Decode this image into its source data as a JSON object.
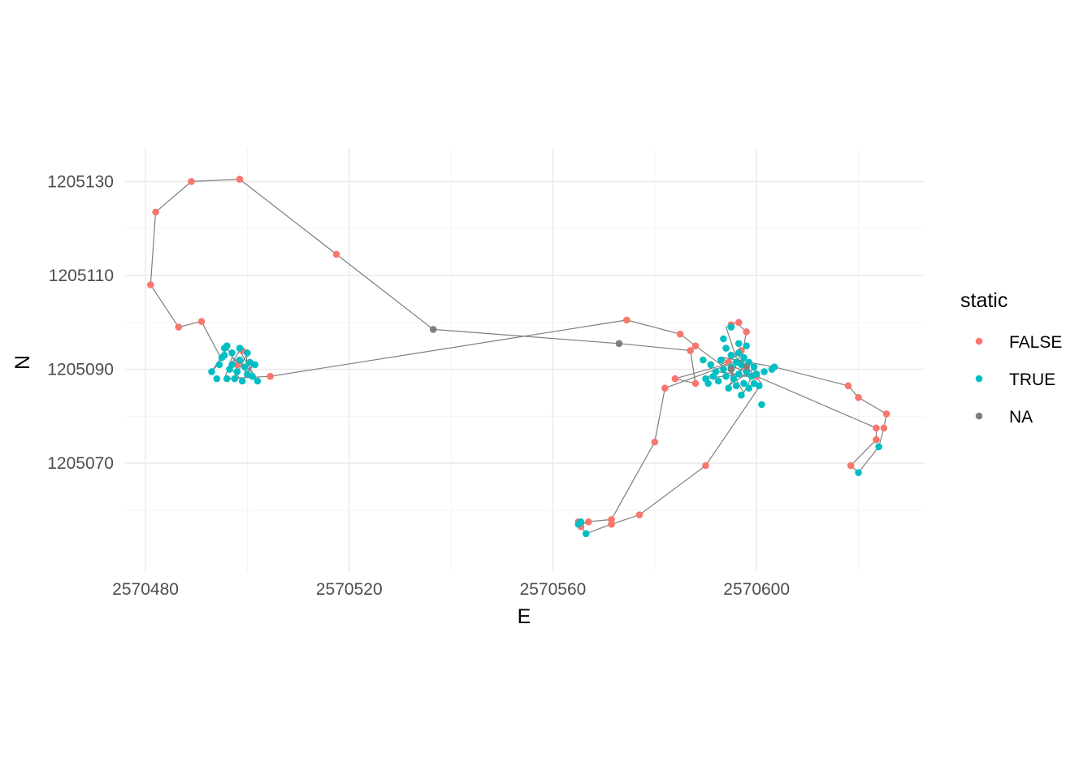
{
  "chart_data": {
    "type": "scatter",
    "title": "",
    "xlabel": "E",
    "ylabel": "N",
    "xlim": [
      2570476,
      2570633
    ],
    "ylim": [
      1205047,
      1205137
    ],
    "x_ticks": [
      2570480,
      2570520,
      2570560,
      2570600
    ],
    "y_ticks": [
      1205070,
      1205090,
      1205110,
      1205130
    ],
    "grid": true,
    "connect_points_with_path": true,
    "path_color": "#7f7f7f",
    "legend": {
      "title": "static",
      "position": "right",
      "entries": [
        {
          "label": "FALSE",
          "color": "#F8766D"
        },
        {
          "label": "TRUE",
          "color": "#00BFC4"
        },
        {
          "label": "NA",
          "color": "#7F7F7F"
        }
      ]
    },
    "path": [
      [
        2570498.5,
        1205130.5
      ],
      [
        2570489.0,
        1205130.0
      ],
      [
        2570482.0,
        1205123.5
      ],
      [
        2570481.0,
        1205108.0
      ],
      [
        2570486.5,
        1205099.0
      ],
      [
        2570491.0,
        1205100.2
      ],
      [
        2570495.0,
        1205092.0
      ],
      [
        2570493.0,
        1205089.5
      ],
      [
        2570496.0,
        1205094.5
      ],
      [
        2570498.0,
        1205091.0
      ],
      [
        2570497.5,
        1205088.0
      ],
      [
        2570500.0,
        1205093.5
      ],
      [
        2570499.5,
        1205089.0
      ],
      [
        2570501.5,
        1205091.5
      ],
      [
        2570499.0,
        1205087.5
      ],
      [
        2570496.5,
        1205090.5
      ],
      [
        2570498.5,
        1205094.0
      ],
      [
        2570502.0,
        1205087.5
      ],
      [
        2570500.5,
        1205090.0
      ],
      [
        2570497.0,
        1205092.5
      ],
      [
        2570495.5,
        1205088.0
      ],
      [
        2570504.5,
        1205088.5
      ],
      [
        2570574.5,
        1205100.5
      ],
      [
        2570585.0,
        1205097.5
      ],
      [
        2570588.0,
        1205095.0
      ],
      [
        2570593.0,
        1205091.0
      ],
      [
        2570597.0,
        1205093.5
      ],
      [
        2570595.0,
        1205088.5
      ],
      [
        2570599.5,
        1205088.5
      ],
      [
        2570592.0,
        1205089.5
      ],
      [
        2570590.0,
        1205088.0
      ],
      [
        2570596.5,
        1205089.0
      ],
      [
        2570598.0,
        1205091.5
      ],
      [
        2570594.5,
        1205086.5
      ],
      [
        2570600.0,
        1205090.5
      ],
      [
        2570597.5,
        1205085.0
      ],
      [
        2570593.5,
        1205092.5
      ],
      [
        2570603.5,
        1205090.5
      ],
      [
        2570618.0,
        1205086.5
      ],
      [
        2570620.0,
        1205084.0
      ],
      [
        2570625.5,
        1205080.5
      ],
      [
        2570625.0,
        1205077.5
      ],
      [
        2570624.0,
        1205073.5
      ],
      [
        2570620.0,
        1205068.0
      ],
      [
        2570618.5,
        1205069.5
      ],
      [
        2570623.5,
        1205075.0
      ],
      [
        2570623.5,
        1205077.5
      ],
      [
        2570600.0,
        1205088.5
      ],
      [
        2570594.5,
        1205091.0
      ],
      [
        2570582.0,
        1205086.0
      ],
      [
        2570580.0,
        1205074.5
      ],
      [
        2570571.5,
        1205058.0
      ],
      [
        2570566.5,
        1205057.5
      ],
      [
        2570565.5,
        1205056.5
      ],
      [
        2570565.0,
        1205057.5
      ],
      [
        2570566.5,
        1205055.0
      ],
      [
        2570571.5,
        1205057.0
      ],
      [
        2570577.0,
        1205059.0
      ],
      [
        2570590.0,
        1205069.5
      ],
      [
        2570601.0,
        1205087.0
      ],
      [
        2570598.5,
        1205090.0
      ],
      [
        2570596.0,
        1205092.5
      ],
      [
        2570594.0,
        1205099.0
      ],
      [
        2570596.0,
        1205100.0
      ],
      [
        2570598.0,
        1205098.0
      ],
      [
        2570597.0,
        1205092.0
      ],
      [
        2570584.0,
        1205088.0
      ],
      [
        2570588.0,
        1205087.0
      ],
      [
        2570587.0,
        1205094.0
      ],
      [
        2570573.0,
        1205095.5
      ],
      [
        2570536.5,
        1205098.5
      ],
      [
        2570517.5,
        1205114.5
      ],
      [
        2570498.5,
        1205130.5
      ]
    ],
    "series": [
      {
        "name": "FALSE",
        "color": "#F8766D",
        "points": [
          [
            2570498.5,
            1205130.5
          ],
          [
            2570489.0,
            1205130.0
          ],
          [
            2570482.0,
            1205123.5
          ],
          [
            2570481.0,
            1205108.0
          ],
          [
            2570486.5,
            1205099.0
          ],
          [
            2570491.0,
            1205100.2
          ],
          [
            2570517.5,
            1205114.5
          ],
          [
            2570498.0,
            1205091.0
          ],
          [
            2570499.0,
            1205094.0
          ],
          [
            2570504.5,
            1205088.5
          ],
          [
            2570574.5,
            1205100.5
          ],
          [
            2570585.0,
            1205097.5
          ],
          [
            2570588.0,
            1205095.0
          ],
          [
            2570587.0,
            1205094.0
          ],
          [
            2570584.0,
            1205088.0
          ],
          [
            2570588.0,
            1205087.0
          ],
          [
            2570582.0,
            1205086.0
          ],
          [
            2570580.0,
            1205074.5
          ],
          [
            2570594.5,
            1205091.5
          ],
          [
            2570597.0,
            1205094.0
          ],
          [
            2570595.0,
            1205099.5
          ],
          [
            2570596.5,
            1205100.0
          ],
          [
            2570598.0,
            1205098.0
          ],
          [
            2570600.0,
            1205088.5
          ],
          [
            2570590.0,
            1205069.5
          ],
          [
            2570577.0,
            1205059.0
          ],
          [
            2570571.5,
            1205058.0
          ],
          [
            2570571.5,
            1205057.0
          ],
          [
            2570567.0,
            1205057.5
          ],
          [
            2570565.5,
            1205056.5
          ],
          [
            2570565.0,
            1205057.5
          ],
          [
            2570618.0,
            1205086.5
          ],
          [
            2570620.0,
            1205084.0
          ],
          [
            2570625.5,
            1205080.5
          ],
          [
            2570625.0,
            1205077.5
          ],
          [
            2570623.5,
            1205077.5
          ],
          [
            2570623.5,
            1205075.0
          ],
          [
            2570618.5,
            1205069.5
          ]
        ]
      },
      {
        "name": "TRUE",
        "color": "#00BFC4",
        "points": [
          [
            2570493.0,
            1205089.5
          ],
          [
            2570494.5,
            1205091.0
          ],
          [
            2570495.0,
            1205092.5
          ],
          [
            2570495.5,
            1205094.5
          ],
          [
            2570496.0,
            1205095.0
          ],
          [
            2570496.5,
            1205090.0
          ],
          [
            2570497.0,
            1205093.5
          ],
          [
            2570497.5,
            1205088.0
          ],
          [
            2570498.0,
            1205089.5
          ],
          [
            2570498.5,
            1205092.0
          ],
          [
            2570499.0,
            1205087.5
          ],
          [
            2570499.5,
            1205090.5
          ],
          [
            2570500.0,
            1205093.5
          ],
          [
            2570500.5,
            1205091.5
          ],
          [
            2570501.5,
            1205091.0
          ],
          [
            2570502.0,
            1205087.5
          ],
          [
            2570494.0,
            1205088.0
          ],
          [
            2570496.0,
            1205088.0
          ],
          [
            2570498.5,
            1205094.5
          ],
          [
            2570500.0,
            1205089.0
          ],
          [
            2570495.5,
            1205093.0
          ],
          [
            2570497.0,
            1205091.0
          ],
          [
            2570501.0,
            1205088.5
          ],
          [
            2570590.0,
            1205088.0
          ],
          [
            2570589.5,
            1205092.0
          ],
          [
            2570590.5,
            1205087.0
          ],
          [
            2570591.0,
            1205091.0
          ],
          [
            2570592.0,
            1205089.5
          ],
          [
            2570592.5,
            1205087.5
          ],
          [
            2570593.0,
            1205092.0
          ],
          [
            2570593.5,
            1205090.0
          ],
          [
            2570593.5,
            1205096.5
          ],
          [
            2570594.0,
            1205088.5
          ],
          [
            2570594.5,
            1205086.0
          ],
          [
            2570595.0,
            1205093.0
          ],
          [
            2570595.0,
            1205090.5
          ],
          [
            2570595.5,
            1205088.0
          ],
          [
            2570596.0,
            1205091.5
          ],
          [
            2570596.0,
            1205086.5
          ],
          [
            2570596.5,
            1205093.5
          ],
          [
            2570596.5,
            1205089.0
          ],
          [
            2570597.0,
            1205084.5
          ],
          [
            2570597.0,
            1205091.0
          ],
          [
            2570597.5,
            1205087.0
          ],
          [
            2570597.5,
            1205092.5
          ],
          [
            2570598.0,
            1205089.5
          ],
          [
            2570598.0,
            1205095.0
          ],
          [
            2570598.5,
            1205086.0
          ],
          [
            2570598.5,
            1205091.5
          ],
          [
            2570599.0,
            1205088.5
          ],
          [
            2570599.5,
            1205090.5
          ],
          [
            2570599.5,
            1205087.0
          ],
          [
            2570600.0,
            1205089.0
          ],
          [
            2570600.5,
            1205086.5
          ],
          [
            2570601.0,
            1205082.5
          ],
          [
            2570601.5,
            1205089.5
          ],
          [
            2570603.0,
            1205090.0
          ],
          [
            2570603.5,
            1205090.5
          ],
          [
            2570594.0,
            1205094.5
          ],
          [
            2570596.5,
            1205095.5
          ],
          [
            2570595.0,
            1205099.0
          ],
          [
            2570591.5,
            1205088.5
          ],
          [
            2570624.0,
            1205073.5
          ],
          [
            2570620.0,
            1205068.0
          ],
          [
            2570565.5,
            1205057.5
          ],
          [
            2570566.5,
            1205055.0
          ],
          [
            2570565.0,
            1205057.0
          ]
        ]
      },
      {
        "name": "NA",
        "color": "#7F7F7F",
        "points": [
          [
            2570536.5,
            1205098.5
          ],
          [
            2570573.0,
            1205095.5
          ],
          [
            2570598.0,
            1205090.5
          ],
          [
            2570595.0,
            1205090.0
          ]
        ]
      }
    ]
  }
}
